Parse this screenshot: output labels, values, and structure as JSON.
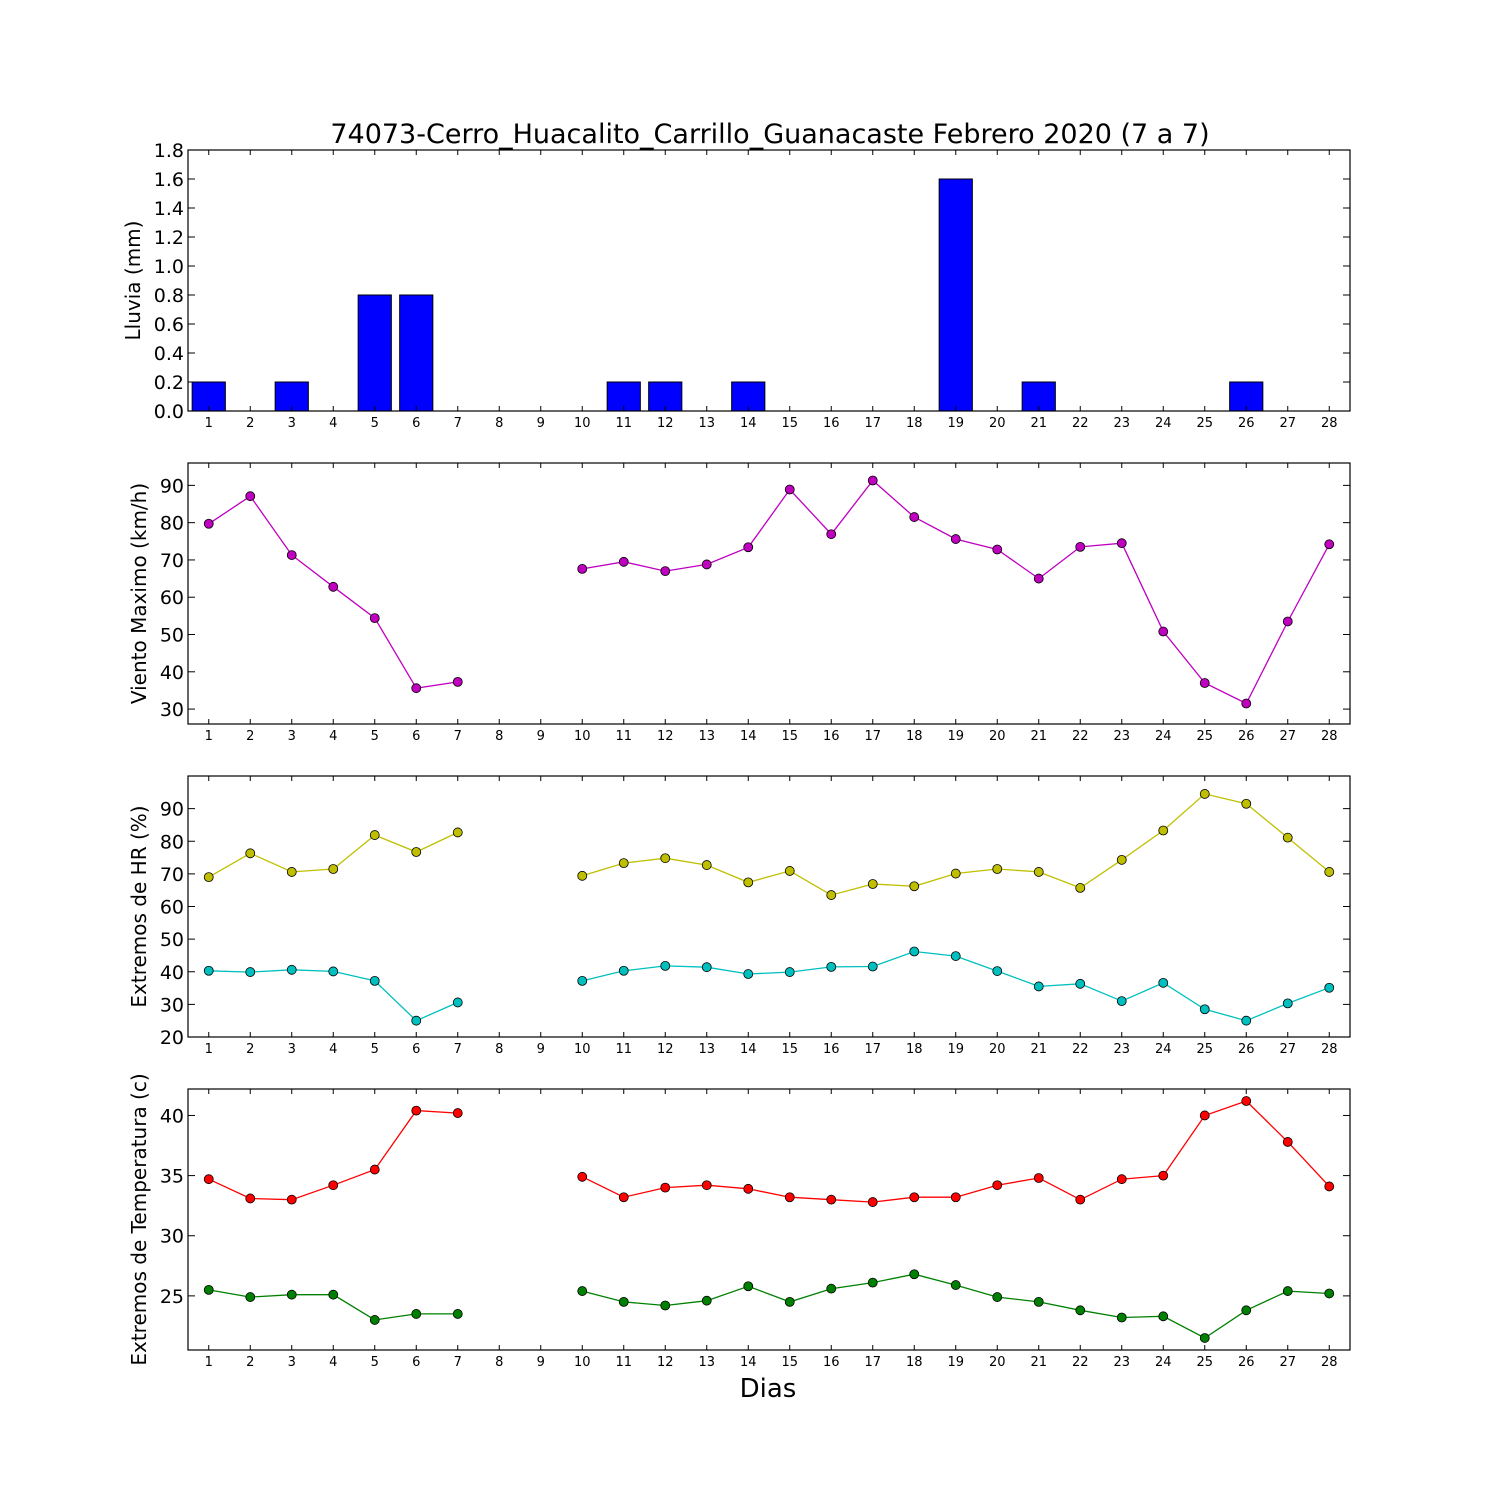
{
  "title": "74073-Cerro_Huacalito_Carrillo_Guanacaste Febrero 2020  (7 a 7)",
  "xlabel": "Dias",
  "days": [
    1,
    2,
    3,
    4,
    5,
    6,
    7,
    8,
    9,
    10,
    11,
    12,
    13,
    14,
    15,
    16,
    17,
    18,
    19,
    20,
    21,
    22,
    23,
    24,
    25,
    26,
    27,
    28
  ],
  "chart_data": [
    {
      "type": "bar",
      "ylabel": "Lluvia (mm)",
      "ylim": [
        0,
        1.8
      ],
      "yticks": [
        "0.0",
        "0.2",
        "0.4",
        "0.6",
        "0.8",
        "1.0",
        "1.2",
        "1.4",
        "1.6",
        "1.8"
      ],
      "xlim": [
        0.5,
        28.5
      ],
      "series": [
        {
          "color": "#0000ff",
          "x": [
            1,
            2,
            3,
            4,
            5,
            6,
            7,
            8,
            9,
            10,
            11,
            12,
            13,
            14,
            15,
            16,
            17,
            18,
            19,
            20,
            21,
            22,
            23,
            24,
            25,
            26,
            27,
            28
          ],
          "values": [
            0.2,
            0,
            0.2,
            0,
            0.8,
            0.8,
            0,
            0,
            0,
            0,
            0.2,
            0.2,
            0,
            0.2,
            0,
            0,
            0,
            0,
            1.6,
            0,
            0.2,
            0,
            0,
            0,
            0,
            0.2,
            0,
            0
          ]
        }
      ]
    },
    {
      "type": "line",
      "ylabel": "Viento Maximo (km/h)",
      "ylim": [
        26,
        96
      ],
      "yticks": [
        "30",
        "40",
        "50",
        "60",
        "70",
        "80",
        "90"
      ],
      "xlim": [
        0.5,
        28.5
      ],
      "series": [
        {
          "color": "#bf00bf",
          "x": [
            1,
            2,
            3,
            4,
            5,
            6,
            7,
            10,
            11,
            12,
            13,
            14,
            15,
            16,
            17,
            18,
            19,
            20,
            21,
            22,
            23,
            24,
            25,
            26,
            27,
            28
          ],
          "values": [
            79.7,
            87.1,
            71.3,
            62.8,
            54.4,
            35.6,
            37.3,
            67.6,
            69.5,
            67.0,
            68.8,
            73.4,
            88.9,
            76.9,
            91.3,
            81.5,
            75.6,
            72.8,
            65.0,
            73.5,
            74.5,
            50.8,
            37.0,
            31.5,
            53.5,
            74.2
          ]
        }
      ]
    },
    {
      "type": "line",
      "ylabel": "Extremos de HR (%)",
      "ylim": [
        20,
        100
      ],
      "yticks": [
        "20",
        "30",
        "40",
        "50",
        "60",
        "70",
        "80",
        "90"
      ],
      "xlim": [
        0.5,
        28.5
      ],
      "series": [
        {
          "color": "#bfbf00",
          "x": [
            1,
            2,
            3,
            4,
            5,
            6,
            7,
            10,
            11,
            12,
            13,
            14,
            15,
            16,
            17,
            18,
            19,
            20,
            21,
            22,
            23,
            24,
            25,
            26,
            27,
            28
          ],
          "values": [
            69.0,
            76.3,
            70.6,
            71.5,
            81.9,
            76.7,
            82.7,
            69.4,
            73.3,
            74.8,
            72.7,
            67.4,
            70.9,
            63.5,
            66.9,
            66.2,
            70.1,
            71.5,
            70.6,
            65.7,
            74.3,
            83.3,
            94.5,
            91.5,
            81.1,
            70.6
          ]
        },
        {
          "color": "#00bfbf",
          "x": [
            1,
            2,
            3,
            4,
            5,
            6,
            7,
            10,
            11,
            12,
            13,
            14,
            15,
            16,
            17,
            18,
            19,
            20,
            21,
            22,
            23,
            24,
            25,
            26,
            27,
            28
          ],
          "values": [
            40.3,
            39.9,
            40.6,
            40.1,
            37.2,
            25.0,
            30.6,
            37.2,
            40.3,
            41.8,
            41.4,
            39.3,
            39.9,
            41.5,
            41.6,
            46.2,
            44.8,
            40.2,
            35.5,
            36.3,
            31.0,
            36.6,
            28.5,
            25.0,
            30.3,
            35.1
          ]
        }
      ]
    },
    {
      "type": "line",
      "ylabel": "Extremos de Temperatura (c)",
      "ylim": [
        20.5,
        42.2
      ],
      "yticks": [
        "25",
        "30",
        "35",
        "40"
      ],
      "xlim": [
        0.5,
        28.5
      ],
      "series": [
        {
          "color": "#ff0000",
          "x": [
            1,
            2,
            3,
            4,
            5,
            6,
            7,
            10,
            11,
            12,
            13,
            14,
            15,
            16,
            17,
            18,
            19,
            20,
            21,
            22,
            23,
            24,
            25,
            26,
            27,
            28
          ],
          "values": [
            34.7,
            33.1,
            33.0,
            34.2,
            35.5,
            40.4,
            40.2,
            34.9,
            33.2,
            34.0,
            34.2,
            33.9,
            33.2,
            33.0,
            32.8,
            33.2,
            33.2,
            34.2,
            34.8,
            33.0,
            34.7,
            35.0,
            40.0,
            41.2,
            37.8,
            34.1
          ]
        },
        {
          "color": "#008000",
          "x": [
            1,
            2,
            3,
            4,
            5,
            6,
            7,
            10,
            11,
            12,
            13,
            14,
            15,
            16,
            17,
            18,
            19,
            20,
            21,
            22,
            23,
            24,
            25,
            26,
            27,
            28
          ],
          "values": [
            25.5,
            24.9,
            25.1,
            25.1,
            23.0,
            23.5,
            23.5,
            25.4,
            24.5,
            24.2,
            24.6,
            25.8,
            24.5,
            25.6,
            26.1,
            26.8,
            25.9,
            24.9,
            24.5,
            23.8,
            23.2,
            23.3,
            21.5,
            23.8,
            25.4,
            25.2
          ]
        }
      ]
    }
  ]
}
